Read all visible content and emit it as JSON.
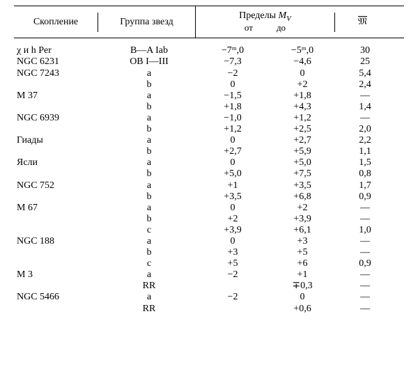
{
  "headers": {
    "cluster": "Скопление",
    "group": "Группа звезд",
    "mv_title_prefix": "Пределы ",
    "mv_title_M": "M",
    "mv_title_V": "V",
    "mv_from": "от",
    "mv_to": "до",
    "mbar": "𝔐"
  },
  "rows": [
    {
      "cluster": "χ и h Per",
      "group": "B—A Iab",
      "from": "−7ᵐ,0",
      "to": "−5ᵐ,0",
      "m": "30"
    },
    {
      "cluster": "NGC 6231",
      "group": "OB I—III",
      "from": "−7,3",
      "to": "−4,6",
      "m": "25"
    },
    {
      "cluster": "NGC 7243",
      "group": "a",
      "from": "−2",
      "to": "0",
      "m": "5,4"
    },
    {
      "cluster": "",
      "group": "b",
      "from": "0",
      "to": "+2",
      "m": "2,4"
    },
    {
      "cluster": "M 37",
      "group": "a",
      "from": "−1,5",
      "to": "+1,8",
      "m": "—"
    },
    {
      "cluster": "",
      "group": "b",
      "from": "+1,8",
      "to": "+4,3",
      "m": "1,4"
    },
    {
      "cluster": "NGC 6939",
      "group": "a",
      "from": "−1,0",
      "to": "+1,2",
      "m": "—"
    },
    {
      "cluster": "",
      "group": "b",
      "from": "+1,2",
      "to": "+2,5",
      "m": "2,0"
    },
    {
      "cluster": "Гиады",
      "group": "a",
      "from": "0",
      "to": "+2,7",
      "m": "2,2"
    },
    {
      "cluster": "",
      "group": "b",
      "from": "+2,7",
      "to": "+5,9",
      "m": "1,1"
    },
    {
      "cluster": "Ясли",
      "group": "a",
      "from": "0",
      "to": "+5,0",
      "m": "1,5"
    },
    {
      "cluster": "",
      "group": "b",
      "from": "+5,0",
      "to": "+7,5",
      "m": "0,8"
    },
    {
      "cluster": "NGC 752",
      "group": "a",
      "from": "+1",
      "to": "+3,5",
      "m": "1,7"
    },
    {
      "cluster": "",
      "group": "b",
      "from": "+3,5",
      "to": "+6,8",
      "m": "0,9"
    },
    {
      "cluster": "M 67",
      "group": "a",
      "from": "0",
      "to": "+2",
      "m": "—"
    },
    {
      "cluster": "",
      "group": "b",
      "from": "+2",
      "to": "+3,9",
      "m": "—"
    },
    {
      "cluster": "",
      "group": "c",
      "from": "+3,9",
      "to": "+6,1",
      "m": "1,0"
    },
    {
      "cluster": "NGC 188",
      "group": "a",
      "from": "0",
      "to": "+3",
      "m": "—"
    },
    {
      "cluster": "",
      "group": "b",
      "from": "+3",
      "to": "+5",
      "m": "—"
    },
    {
      "cluster": "",
      "group": "c",
      "from": "+5",
      "to": "+6",
      "m": "0,9"
    },
    {
      "cluster": "M 3",
      "group": "a",
      "from": "−2",
      "to": "+1",
      "m": "—"
    },
    {
      "cluster": "",
      "group": "RR",
      "from": "",
      "to": "∓0,3",
      "m": "—"
    },
    {
      "cluster": "NGC 5466",
      "group": "a",
      "from": "−2",
      "to": "0",
      "m": "—"
    },
    {
      "cluster": "",
      "group": "RR",
      "from": "",
      "to": "+0,6",
      "m": "—"
    }
  ]
}
